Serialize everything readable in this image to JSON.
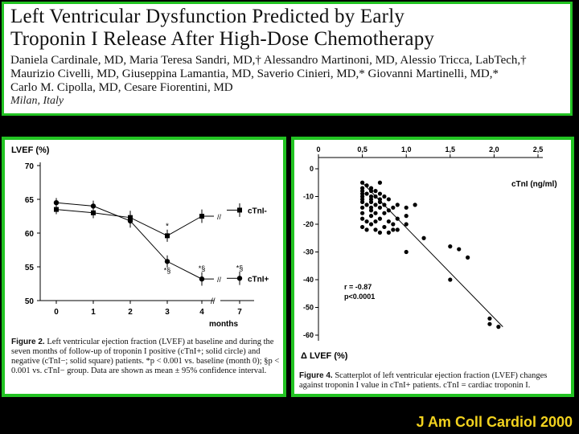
{
  "paper": {
    "title_line1": "Left Ventricular Dysfunction Predicted by Early",
    "title_line2": "Troponin I Release After High-Dose Chemotherapy",
    "authors_line1": "Daniela Cardinale, MD, Maria Teresa Sandri, MD,† Alessandro Martinoni, MD, Alessio Tricca, LabTech,†",
    "authors_line2": "Maurizio Civelli, MD, Giuseppina Lamantia, MD, Saverio Cinieri, MD,* Giovanni Martinelli, MD,*",
    "authors_line3": "Carlo M. Cipolla, MD, Cesare Fiorentini, MD",
    "location": "Milan, Italy"
  },
  "citation": "J Am Coll Cardiol 2000",
  "figure2": {
    "caption_label": "Figure 2.",
    "caption_text": "Left ventricular ejection fraction (LVEF) at baseline and during the seven months of follow-up of troponin I positive (cTnI+; solid circle) and negative (cTnI−; solid square) patients. *p < 0.001 vs. baseline (month 0); §p < 0.001 vs. cTnI− group. Data are shown as mean ± 95% confidence interval."
  },
  "figure4": {
    "caption_label": "Figure 4.",
    "caption_text": "Scatterplot of left ventricular ejection fraction (LVEF) changes against troponin I value in cTnI+ patients. cTnI = cardiac troponin I."
  },
  "chart_data": [
    {
      "type": "line",
      "ylabel": "LVEF (%)",
      "xlabel": "months",
      "x": [
        "0",
        "1",
        "2",
        "3",
        "4",
        "7"
      ],
      "ylim": [
        50,
        70
      ],
      "yticks": [
        "70",
        "65",
        "60",
        "55",
        "50"
      ],
      "series": [
        {
          "name": "cTnI-",
          "marker": "square",
          "values": [
            63.5,
            63.0,
            62.3,
            59.6,
            62.5,
            63.4
          ]
        },
        {
          "name": "cTnI+",
          "marker": "circle",
          "values": [
            64.5,
            64.0,
            61.8,
            55.8,
            53.2,
            53.3
          ]
        }
      ],
      "annotations": [
        "*",
        "*§",
        "*§",
        "*§"
      ]
    },
    {
      "type": "scatter",
      "xlabel": "cTnI (ng/ml)",
      "ylabel": "Δ LVEF (%)",
      "xlim": [
        0,
        2.5
      ],
      "ylim": [
        -60,
        0
      ],
      "xticks": [
        "0",
        "0,5",
        "1,0",
        "1,5",
        "2,0",
        "2,5"
      ],
      "yticks": [
        "0",
        "-10",
        "-20",
        "-30",
        "-40",
        "-50",
        "-60"
      ],
      "stats": [
        "r = -0.87",
        "p<0.0001"
      ],
      "regression": {
        "x": [
          0.5,
          2.1
        ],
        "y": [
          -5,
          -57
        ]
      },
      "points": [
        [
          0.5,
          -5
        ],
        [
          0.5,
          -7
        ],
        [
          0.5,
          -8
        ],
        [
          0.5,
          -9
        ],
        [
          0.5,
          -10
        ],
        [
          0.5,
          -11
        ],
        [
          0.5,
          -12
        ],
        [
          0.5,
          -14
        ],
        [
          0.5,
          -16
        ],
        [
          0.5,
          -18
        ],
        [
          0.5,
          -21
        ],
        [
          0.55,
          -6
        ],
        [
          0.55,
          -9
        ],
        [
          0.55,
          -13
        ],
        [
          0.55,
          -19
        ],
        [
          0.55,
          -22
        ],
        [
          0.6,
          -7
        ],
        [
          0.6,
          -8
        ],
        [
          0.6,
          -10
        ],
        [
          0.6,
          -11
        ],
        [
          0.6,
          -12
        ],
        [
          0.6,
          -14
        ],
        [
          0.6,
          -15
        ],
        [
          0.6,
          -17
        ],
        [
          0.6,
          -20
        ],
        [
          0.65,
          -8
        ],
        [
          0.65,
          -10
        ],
        [
          0.65,
          -13
        ],
        [
          0.65,
          -16
        ],
        [
          0.65,
          -19
        ],
        [
          0.65,
          -22
        ],
        [
          0.7,
          -5
        ],
        [
          0.7,
          -9
        ],
        [
          0.7,
          -11
        ],
        [
          0.7,
          -12
        ],
        [
          0.7,
          -14
        ],
        [
          0.7,
          -18
        ],
        [
          0.7,
          -23
        ],
        [
          0.75,
          -10
        ],
        [
          0.75,
          -13
        ],
        [
          0.75,
          -16
        ],
        [
          0.75,
          -21
        ],
        [
          0.8,
          -11
        ],
        [
          0.8,
          -15
        ],
        [
          0.8,
          -19
        ],
        [
          0.8,
          -23
        ],
        [
          0.85,
          -14
        ],
        [
          0.85,
          -20
        ],
        [
          0.85,
          -22
        ],
        [
          0.9,
          -13
        ],
        [
          0.9,
          -18
        ],
        [
          0.9,
          -22
        ],
        [
          1.0,
          -14
        ],
        [
          1.0,
          -17
        ],
        [
          1.0,
          -20
        ],
        [
          1.0,
          -30
        ],
        [
          1.1,
          -13
        ],
        [
          1.2,
          -25
        ],
        [
          1.5,
          -28
        ],
        [
          1.5,
          -40
        ],
        [
          1.6,
          -29
        ],
        [
          1.7,
          -32
        ],
        [
          1.95,
          -54
        ],
        [
          1.95,
          -56
        ],
        [
          2.05,
          -57
        ]
      ]
    }
  ]
}
